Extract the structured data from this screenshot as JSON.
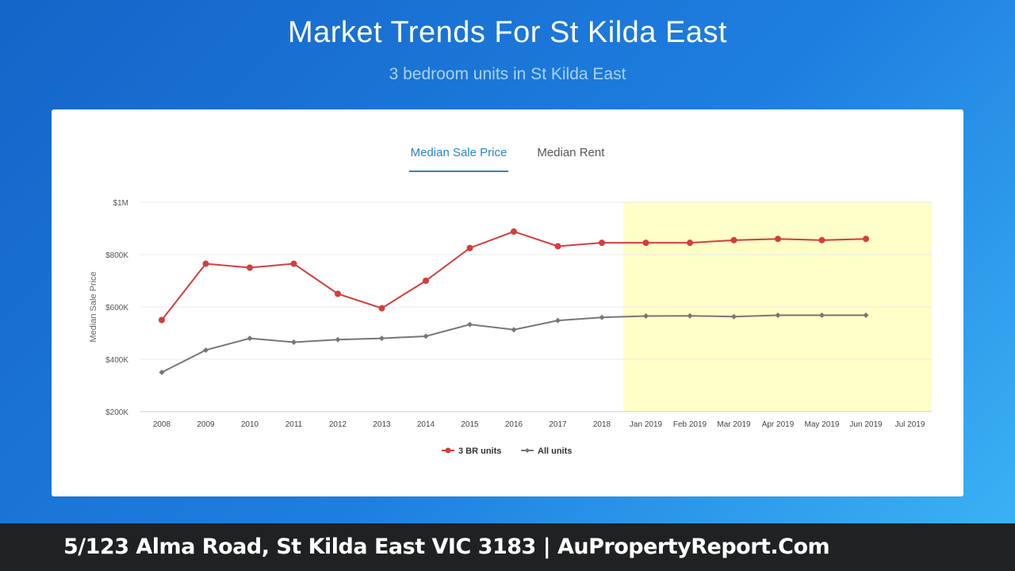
{
  "header": {
    "title": "Market Trends For St Kilda East",
    "subtitle": "3 bedroom units in St Kilda East"
  },
  "tabs": [
    {
      "label": "Median Sale Price",
      "active": true
    },
    {
      "label": "Median Rent",
      "active": false
    }
  ],
  "chart_data": {
    "type": "line",
    "ylabel": "Median Sale Price",
    "y_ticks": [
      "$200K",
      "$400K",
      "$600K",
      "$800K",
      "$1M"
    ],
    "y_tick_values": [
      200000,
      400000,
      600000,
      800000,
      1000000
    ],
    "ylim": [
      200000,
      1000000
    ],
    "categories": [
      "2008",
      "2009",
      "2010",
      "2011",
      "2012",
      "2013",
      "2014",
      "2015",
      "2016",
      "2017",
      "2018",
      "Jan 2019",
      "Feb 2019",
      "Mar 2019",
      "Apr 2019",
      "May 2019",
      "Jun 2019",
      "Jul 2019"
    ],
    "highlight_range": [
      "Jan 2019",
      "Jul 2019"
    ],
    "highlight_color": "#ffffc8",
    "grid": true,
    "legend_position": "bottom",
    "series": [
      {
        "name": "3 BR units",
        "color": "#d63c3c",
        "marker": "circle",
        "values": [
          550000,
          765000,
          750000,
          765000,
          650000,
          595000,
          700000,
          825000,
          888000,
          832000,
          845000,
          845000,
          845000,
          855000,
          860000,
          855000,
          860000,
          null
        ]
      },
      {
        "name": "All units",
        "color": "#777777",
        "marker": "diamond",
        "values": [
          350000,
          435000,
          480000,
          465000,
          475000,
          480000,
          488000,
          533000,
          513000,
          548000,
          560000,
          565000,
          566000,
          563000,
          568000,
          568000,
          568000,
          null
        ]
      }
    ]
  },
  "footer": {
    "text": "5/123 Alma Road, St Kilda East VIC 3183 | AuPropertyReport.Com"
  }
}
